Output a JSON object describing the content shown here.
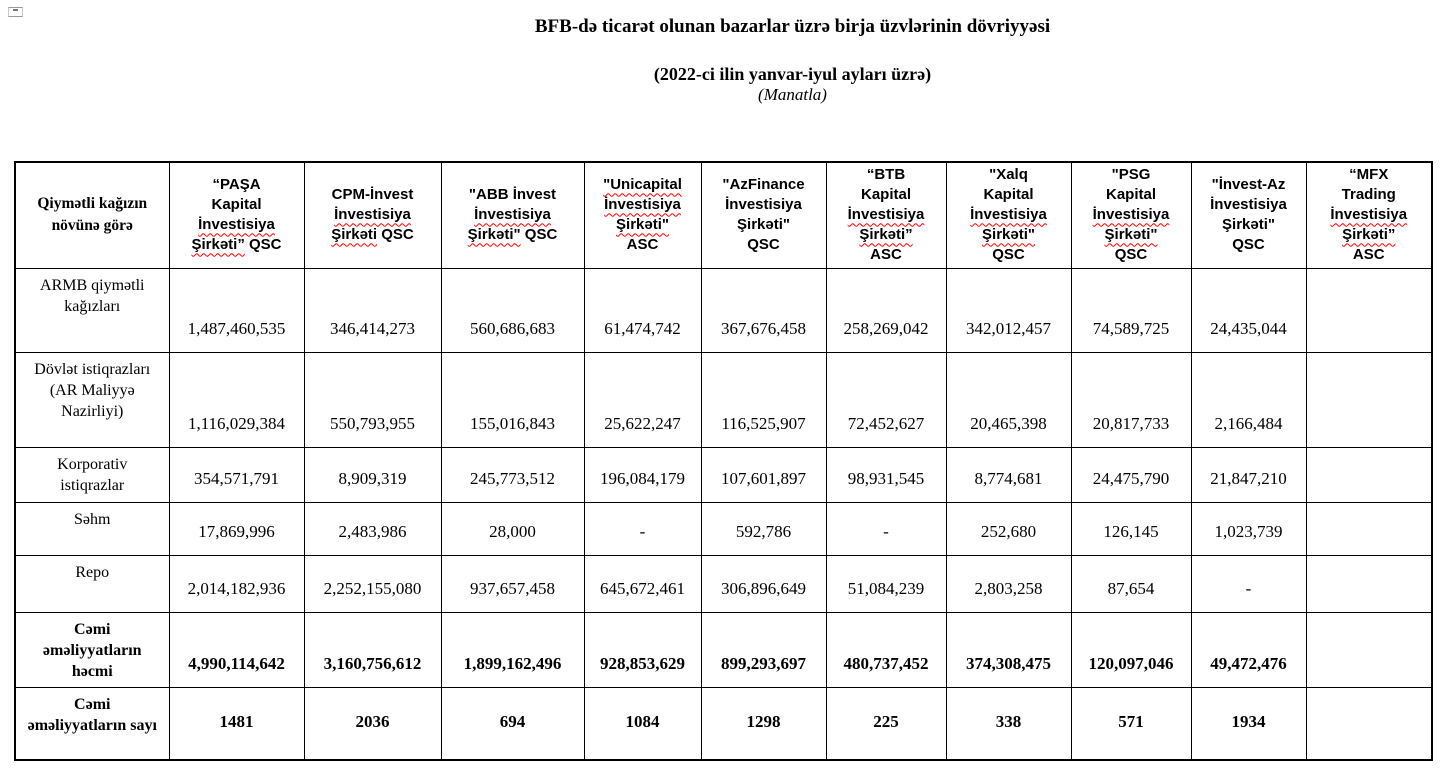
{
  "page": {
    "title": "BFB-də ticarət olunan bazarlar üzrə birja üzvlərinin dövriyyəsi",
    "subtitle": "(2022-ci ilin yanvar-iyul ayları üzrə)",
    "unit_note": "(Manatla)"
  },
  "accent_colors": {
    "spellcheck_underline": "#ff0000",
    "table_border": "#000000"
  },
  "table": {
    "corner_header": "Qiymətli kağızın növünə görə",
    "columns": [
      {
        "id": "pasha-kapital",
        "lines": [
          [
            {
              "t": "“PAŞA"
            }
          ],
          [
            {
              "t": "Kapital"
            }
          ],
          [
            {
              "t": "İnvestisiya",
              "sq": true
            }
          ],
          [
            {
              "t": "Şirkəti”",
              "sq": true
            },
            {
              "t": " QSC"
            }
          ]
        ]
      },
      {
        "id": "cpm-invest",
        "lines": [
          [
            {
              "t": "CPM-İnvest"
            }
          ],
          [
            {
              "t": "İnvestisiya",
              "sq": true
            }
          ],
          [
            {
              "t": "Şirkəti",
              "sq": true
            },
            {
              "t": " QSC"
            }
          ]
        ]
      },
      {
        "id": "abb-invest",
        "lines": [
          [
            {
              "t": "\"ABB İnvest"
            }
          ],
          [
            {
              "t": "İnvestisiya",
              "sq": true
            }
          ],
          [
            {
              "t": "Şirkəti\"",
              "sq": true
            },
            {
              "t": " QSC"
            }
          ]
        ]
      },
      {
        "id": "unicapital",
        "lines": [
          [
            {
              "t": "\"Unicapital",
              "sq": true
            }
          ],
          [
            {
              "t": "İnvestisiya",
              "sq": true
            }
          ],
          [
            {
              "t": "Şirkəti\"",
              "sq": true
            }
          ],
          [
            {
              "t": "ASC"
            }
          ]
        ]
      },
      {
        "id": "azfinance",
        "lines": [
          [
            {
              "t": "\"AzFinance"
            }
          ],
          [
            {
              "t": "İnvestisiya"
            }
          ],
          [
            {
              "t": "Şirkəti\""
            }
          ],
          [
            {
              "t": "QSC"
            }
          ]
        ]
      },
      {
        "id": "btb-kapital",
        "lines": [
          [
            {
              "t": "“BTB"
            }
          ],
          [
            {
              "t": "Kapital"
            }
          ],
          [
            {
              "t": "İnvestisiya",
              "sq": true
            }
          ],
          [
            {
              "t": "Şirkəti”",
              "sq": true
            }
          ],
          [
            {
              "t": "ASC"
            }
          ]
        ]
      },
      {
        "id": "xalq-kapital",
        "lines": [
          [
            {
              "t": "\"Xalq"
            }
          ],
          [
            {
              "t": "Kapital"
            }
          ],
          [
            {
              "t": "İnvestisiya",
              "sq": true
            }
          ],
          [
            {
              "t": "Şirkəti\"",
              "sq": true
            }
          ],
          [
            {
              "t": "QSC"
            }
          ]
        ]
      },
      {
        "id": "psg-kapital",
        "lines": [
          [
            {
              "t": "\"PSG"
            }
          ],
          [
            {
              "t": "Kapital"
            }
          ],
          [
            {
              "t": "İnvestisiya",
              "sq": true
            }
          ],
          [
            {
              "t": "Şirkəti\"",
              "sq": true
            }
          ],
          [
            {
              "t": "QSC"
            }
          ]
        ]
      },
      {
        "id": "invest-az",
        "lines": [
          [
            {
              "t": "\"İnvest-Az"
            }
          ],
          [
            {
              "t": "İnvestisiya"
            }
          ],
          [
            {
              "t": "Şirkəti\""
            }
          ],
          [
            {
              "t": "QSC"
            }
          ]
        ]
      },
      {
        "id": "mfx-trading",
        "lines": [
          [
            {
              "t": "“MFX"
            }
          ],
          [
            {
              "t": "Trading"
            }
          ],
          [
            {
              "t": "İnvestisiya",
              "sq": true
            }
          ],
          [
            {
              "t": "Şirkəti”",
              "sq": true
            }
          ],
          [
            {
              "t": "ASC"
            }
          ]
        ]
      }
    ],
    "rows": [
      {
        "label": "ARMB qiymətli kağızları",
        "bold": false,
        "values": [
          "1,487,460,535",
          "346,414,273",
          "560,686,683",
          "61,474,742",
          "367,676,458",
          "258,269,042",
          "342,012,457",
          "74,589,725",
          "24,435,044",
          ""
        ]
      },
      {
        "label": "Dövlət istiqrazları (AR Maliyyə Nazirliyi)",
        "bold": false,
        "values": [
          "1,116,029,384",
          "550,793,955",
          "155,016,843",
          "25,622,247",
          "116,525,907",
          "72,452,627",
          "20,465,398",
          "20,817,733",
          "2,166,484",
          ""
        ]
      },
      {
        "label": "Korporativ istiqrazlar",
        "bold": false,
        "values": [
          "354,571,791",
          "8,909,319",
          "245,773,512",
          "196,084,179",
          "107,601,897",
          "98,931,545",
          "8,774,681",
          "24,475,790",
          "21,847,210",
          ""
        ]
      },
      {
        "label": "Səhm",
        "bold": false,
        "values": [
          "17,869,996",
          "2,483,986",
          "28,000",
          "-",
          "592,786",
          "-",
          "252,680",
          "126,145",
          "1,023,739",
          ""
        ]
      },
      {
        "label": "Repo",
        "bold": false,
        "values": [
          "2,014,182,936",
          "2,252,155,080",
          "937,657,458",
          "645,672,461",
          "306,896,649",
          "51,084,239",
          "2,803,258",
          "87,654",
          "-",
          ""
        ]
      },
      {
        "label": "Cəmi əməliyyatların həcmi",
        "bold": true,
        "values": [
          "4,990,114,642",
          "3,160,756,612",
          "1,899,162,496",
          "928,853,629",
          "899,293,697",
          "480,737,452",
          "374,308,475",
          "120,097,046",
          "49,472,476",
          ""
        ]
      },
      {
        "label": "Cəmi əməliyyatların sayı",
        "bold": true,
        "values": [
          "1481",
          "2036",
          "694",
          "1084",
          "1298",
          "225",
          "338",
          "571",
          "1934",
          ""
        ]
      }
    ]
  }
}
